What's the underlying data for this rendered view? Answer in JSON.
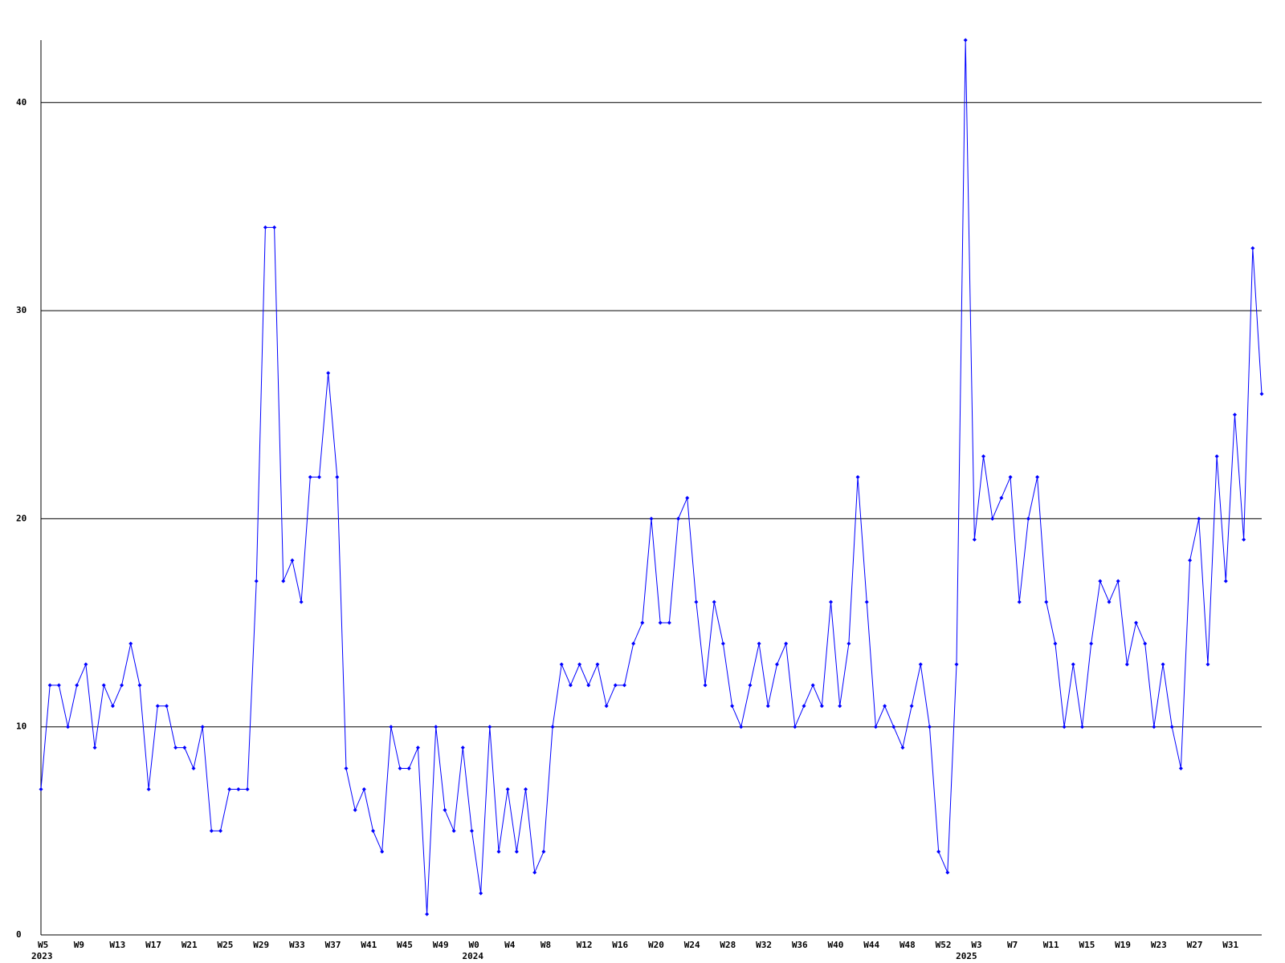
{
  "chart_data": {
    "type": "line",
    "categories": [
      "W5",
      null,
      null,
      null,
      "W9",
      null,
      null,
      null,
      "W13",
      null,
      null,
      null,
      "W17",
      null,
      null,
      null,
      "W21",
      null,
      null,
      null,
      "W25",
      null,
      null,
      null,
      "W29",
      null,
      null,
      null,
      "W33",
      null,
      null,
      null,
      "W37",
      null,
      null,
      null,
      "W41",
      null,
      null,
      null,
      "W45",
      null,
      null,
      null,
      "W49",
      null,
      null,
      null,
      "W0",
      null,
      null,
      null,
      "W4",
      null,
      null,
      null,
      "W8",
      null,
      null,
      null,
      "W12",
      null,
      null,
      null,
      "W16",
      null,
      null,
      null,
      "W20",
      null,
      null,
      null,
      "W24",
      null,
      null,
      null,
      "W28",
      null,
      null,
      null,
      "W32",
      null,
      null,
      null,
      "W36",
      null,
      null,
      null,
      "W40",
      null,
      null,
      null,
      "W44",
      null,
      null,
      null,
      "W48",
      null,
      null,
      null,
      "W52",
      null,
      null,
      null,
      "W3",
      null,
      null,
      null,
      "W7",
      null,
      null,
      null,
      "W11",
      null,
      null,
      null,
      "W15",
      null,
      null,
      null,
      "W19",
      null,
      null,
      null,
      "W23",
      null,
      null,
      null,
      "W27",
      null,
      null,
      null,
      "W31",
      null,
      null,
      null,
      null
    ],
    "years": [
      "2023",
      null,
      null,
      null,
      null,
      null,
      null,
      null,
      null,
      null,
      null,
      null,
      null,
      null,
      null,
      null,
      null,
      null,
      null,
      null,
      null,
      null,
      null,
      null,
      null,
      null,
      null,
      null,
      null,
      null,
      null,
      null,
      null,
      null,
      null,
      null,
      null,
      null,
      null,
      null,
      null,
      null,
      null,
      null,
      null,
      null,
      null,
      null,
      "2024",
      null,
      null,
      null,
      null,
      null,
      null,
      null,
      null,
      null,
      null,
      null,
      null,
      null,
      null,
      null,
      null,
      null,
      null,
      null,
      null,
      null,
      null,
      null,
      null,
      null,
      null,
      null,
      null,
      null,
      null,
      null,
      null,
      null,
      null,
      null,
      null,
      null,
      null,
      null,
      null,
      null,
      null,
      null,
      null,
      null,
      null,
      null,
      null,
      null,
      null,
      null,
      null,
      null,
      null,
      "2025",
      null,
      null,
      null,
      null,
      null,
      null,
      null,
      null,
      null,
      null,
      null,
      null,
      null,
      null,
      null,
      null,
      null,
      null,
      null,
      null,
      null,
      null,
      null,
      null,
      null,
      null,
      null,
      null,
      null,
      null,
      null,
      null,
      null,
      null,
      null
    ],
    "series": [
      {
        "color": "#0000ff",
        "values": [
          7,
          12,
          12,
          10,
          12,
          13,
          9,
          12,
          11,
          12,
          14,
          12,
          7,
          11,
          11,
          9,
          9,
          8,
          10,
          5,
          5,
          7,
          7,
          7,
          17,
          34,
          34,
          17,
          18,
          16,
          22,
          22,
          27,
          22,
          8,
          6,
          7,
          5,
          4,
          10,
          8,
          8,
          9,
          1,
          10,
          6,
          5,
          9,
          5,
          2,
          10,
          4,
          7,
          4,
          7,
          3,
          4,
          10,
          13,
          12,
          13,
          12,
          13,
          11,
          12,
          12,
          14,
          15,
          20,
          15,
          15,
          20,
          21,
          16,
          12,
          16,
          14,
          11,
          10,
          12,
          14,
          11,
          13,
          14,
          10,
          11,
          12,
          11,
          16,
          11,
          14,
          22,
          16,
          10,
          11,
          10,
          9,
          11,
          13,
          10,
          4,
          3,
          13,
          43,
          19,
          23,
          20,
          21,
          22,
          16,
          20,
          22,
          16,
          14,
          10,
          13,
          10,
          14,
          17,
          16,
          17,
          13,
          15,
          14,
          10,
          13,
          10,
          8,
          18,
          20,
          13,
          23,
          17,
          25,
          19,
          33,
          26
        ]
      }
    ],
    "ylim": [
      0,
      43
    ],
    "yticks": [
      0,
      10,
      20,
      30,
      40
    ],
    "grid": true
  }
}
